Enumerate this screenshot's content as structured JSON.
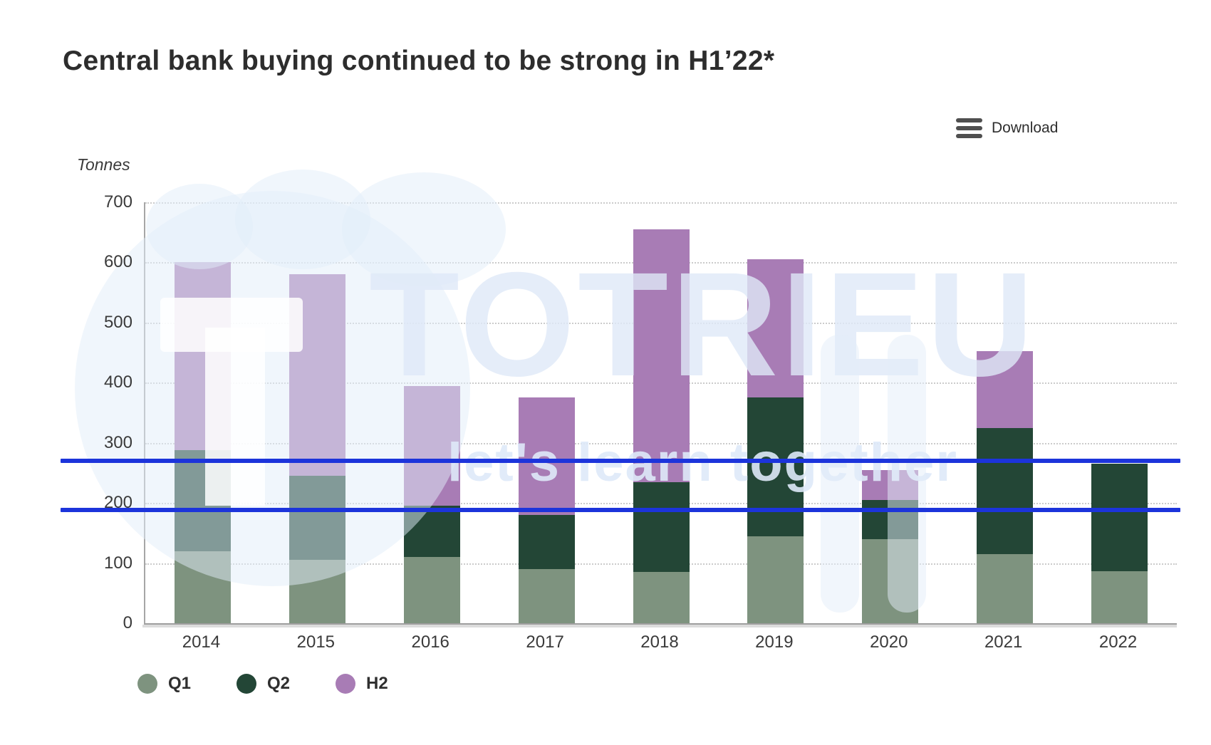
{
  "page": {
    "title": "Central bank buying continued to be strong in H1’22*"
  },
  "toolbar": {
    "download_label": "Download"
  },
  "watermark": {
    "line1": "TOTRIEU",
    "line2": "let's learn together"
  },
  "legend": {
    "items": [
      {
        "label": "Q1",
        "color": "#7e937f"
      },
      {
        "label": "Q2",
        "color": "#234636"
      },
      {
        "label": "H2",
        "color": "#a87cb5"
      }
    ]
  },
  "chart_data": {
    "type": "bar",
    "stacked": true,
    "title": "Central bank buying continued to be strong in H1’22*",
    "unit_label": "Tonnes",
    "categories": [
      "2014",
      "2015",
      "2016",
      "2017",
      "2018",
      "2019",
      "2020",
      "2021",
      "2022"
    ],
    "series": [
      {
        "name": "Q1",
        "color": "#7e937f",
        "values": [
          120,
          105,
          110,
          90,
          85,
          145,
          140,
          115,
          87
        ]
      },
      {
        "name": "Q2",
        "color": "#234636",
        "values": [
          168,
          140,
          85,
          90,
          150,
          230,
          65,
          210,
          178
        ]
      },
      {
        "name": "H2",
        "color": "#a87cb5",
        "values": [
          312,
          335,
          200,
          195,
          420,
          230,
          50,
          127,
          0
        ]
      }
    ],
    "totals": [
      600,
      580,
      395,
      375,
      655,
      605,
      255,
      452,
      265
    ],
    "ylabel": "Tonnes",
    "xlabel": "",
    "ylim": [
      0,
      700
    ],
    "ytick_step": 100,
    "yticks": [
      0,
      100,
      200,
      300,
      400,
      500,
      600,
      700
    ],
    "grid": "horizontal-dotted",
    "legend_position": "bottom-left",
    "reference_lines": [
      {
        "value": 270,
        "color": "#1c34db"
      },
      {
        "value": 188,
        "color": "#1c34db"
      }
    ]
  }
}
